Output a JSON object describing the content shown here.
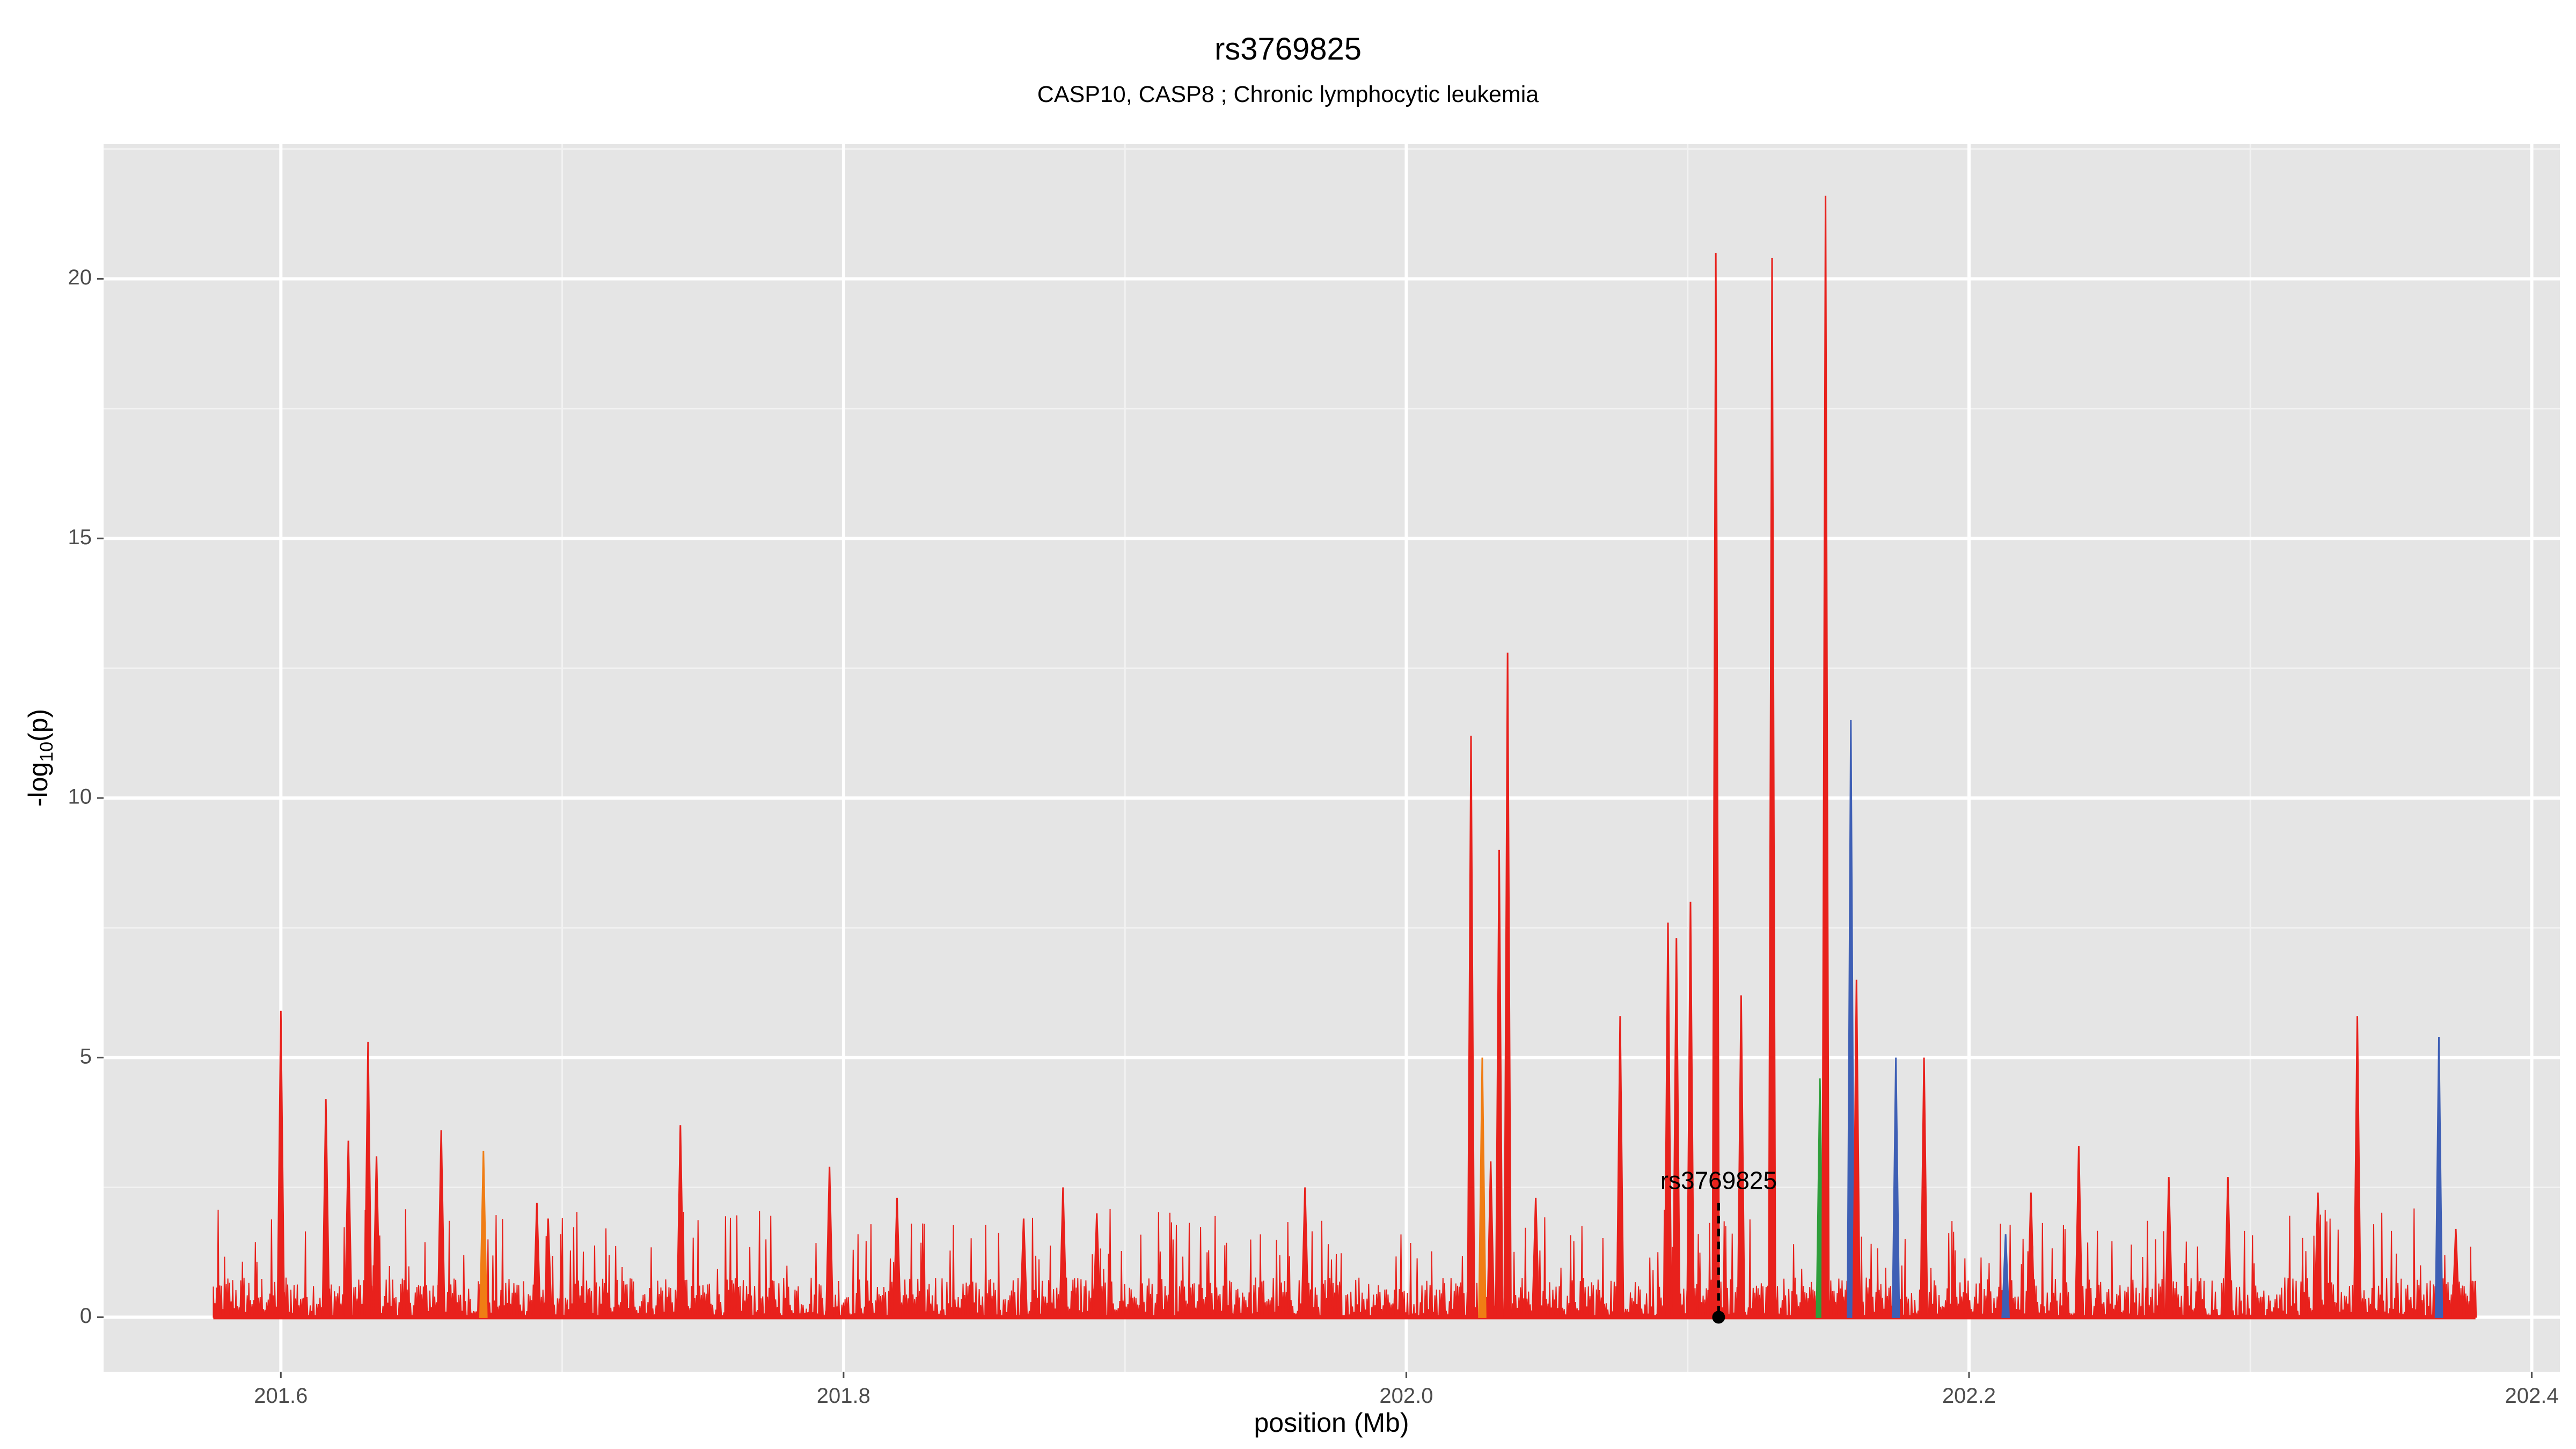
{
  "chart_data": {
    "type": "area",
    "title": "rs3769825",
    "subtitle": "CASP10, CASP8 ; Chronic lymphocytic leukemia",
    "xlabel": "position (Mb)",
    "ylabel_main": "-log",
    "ylabel_sub": "10",
    "ylabel_tail": "(p)",
    "xlim": [
      201.537,
      202.41
    ],
    "ylim": [
      -1.05,
      22.6
    ],
    "x_ticks": [
      {
        "value": 201.6,
        "label": "201.6"
      },
      {
        "value": 201.8,
        "label": "201.8"
      },
      {
        "value": 202.0,
        "label": "202.0"
      },
      {
        "value": 202.2,
        "label": "202.2"
      },
      {
        "value": 202.4,
        "label": "202.4"
      }
    ],
    "y_ticks": [
      {
        "value": 0,
        "label": "0"
      },
      {
        "value": 5,
        "label": "5"
      },
      {
        "value": 10,
        "label": "10"
      },
      {
        "value": 15,
        "label": "15"
      },
      {
        "value": 20,
        "label": "20"
      }
    ],
    "x_range": [
      201.576,
      202.38
    ],
    "grid": true,
    "colors": {
      "panel": "#e5e5e5",
      "grid_major": "#ffffff",
      "grid_minor": "#f2f2f2",
      "red": "#e8211c",
      "orange": "#f07d14",
      "blue": "#3e5fb5",
      "green": "#2e9e3a"
    },
    "highlight": {
      "label": "rs3769825",
      "x": 202.111,
      "y": 2.2
    },
    "peaks": [
      {
        "x": 201.6,
        "y": 5.9,
        "c": "red"
      },
      {
        "x": 201.616,
        "y": 4.2,
        "c": "red"
      },
      {
        "x": 201.624,
        "y": 3.4,
        "c": "red"
      },
      {
        "x": 201.631,
        "y": 5.3,
        "c": "red"
      },
      {
        "x": 201.634,
        "y": 3.1,
        "c": "red"
      },
      {
        "x": 201.657,
        "y": 3.6,
        "c": "red"
      },
      {
        "x": 201.672,
        "y": 3.2,
        "c": "orange"
      },
      {
        "x": 201.691,
        "y": 2.2,
        "c": "red"
      },
      {
        "x": 201.695,
        "y": 1.9,
        "c": "red"
      },
      {
        "x": 201.742,
        "y": 3.7,
        "c": "red"
      },
      {
        "x": 201.795,
        "y": 2.9,
        "c": "red"
      },
      {
        "x": 201.819,
        "y": 2.3,
        "c": "red"
      },
      {
        "x": 201.864,
        "y": 1.9,
        "c": "red"
      },
      {
        "x": 201.878,
        "y": 2.5,
        "c": "red"
      },
      {
        "x": 201.89,
        "y": 2.0,
        "c": "red"
      },
      {
        "x": 201.964,
        "y": 2.5,
        "c": "red"
      },
      {
        "x": 202.023,
        "y": 11.2,
        "c": "red"
      },
      {
        "x": 202.027,
        "y": 5.0,
        "c": "orange"
      },
      {
        "x": 202.03,
        "y": 3.0,
        "c": "red"
      },
      {
        "x": 202.036,
        "y": 12.8,
        "c": "red"
      },
      {
        "x": 202.033,
        "y": 9.0,
        "c": "red"
      },
      {
        "x": 202.046,
        "y": 2.3,
        "c": "red"
      },
      {
        "x": 202.076,
        "y": 5.8,
        "c": "red"
      },
      {
        "x": 202.093,
        "y": 7.6,
        "c": "red"
      },
      {
        "x": 202.096,
        "y": 7.3,
        "c": "red"
      },
      {
        "x": 202.101,
        "y": 8.0,
        "c": "red"
      },
      {
        "x": 202.11,
        "y": 20.5,
        "c": "red"
      },
      {
        "x": 202.119,
        "y": 6.2,
        "c": "red"
      },
      {
        "x": 202.13,
        "y": 20.4,
        "c": "red"
      },
      {
        "x": 202.147,
        "y": 4.6,
        "c": "green"
      },
      {
        "x": 202.149,
        "y": 21.6,
        "c": "red"
      },
      {
        "x": 202.158,
        "y": 11.5,
        "c": "blue"
      },
      {
        "x": 202.16,
        "y": 6.5,
        "c": "red"
      },
      {
        "x": 202.174,
        "y": 5.0,
        "c": "blue"
      },
      {
        "x": 202.184,
        "y": 5.0,
        "c": "red"
      },
      {
        "x": 202.213,
        "y": 1.6,
        "c": "blue"
      },
      {
        "x": 202.222,
        "y": 2.4,
        "c": "red"
      },
      {
        "x": 202.239,
        "y": 3.3,
        "c": "red"
      },
      {
        "x": 202.271,
        "y": 2.7,
        "c": "red"
      },
      {
        "x": 202.292,
        "y": 2.7,
        "c": "red"
      },
      {
        "x": 202.324,
        "y": 2.4,
        "c": "red"
      },
      {
        "x": 202.338,
        "y": 5.8,
        "c": "red"
      },
      {
        "x": 202.367,
        "y": 5.4,
        "c": "blue"
      },
      {
        "x": 202.373,
        "y": 1.7,
        "c": "red"
      }
    ]
  }
}
